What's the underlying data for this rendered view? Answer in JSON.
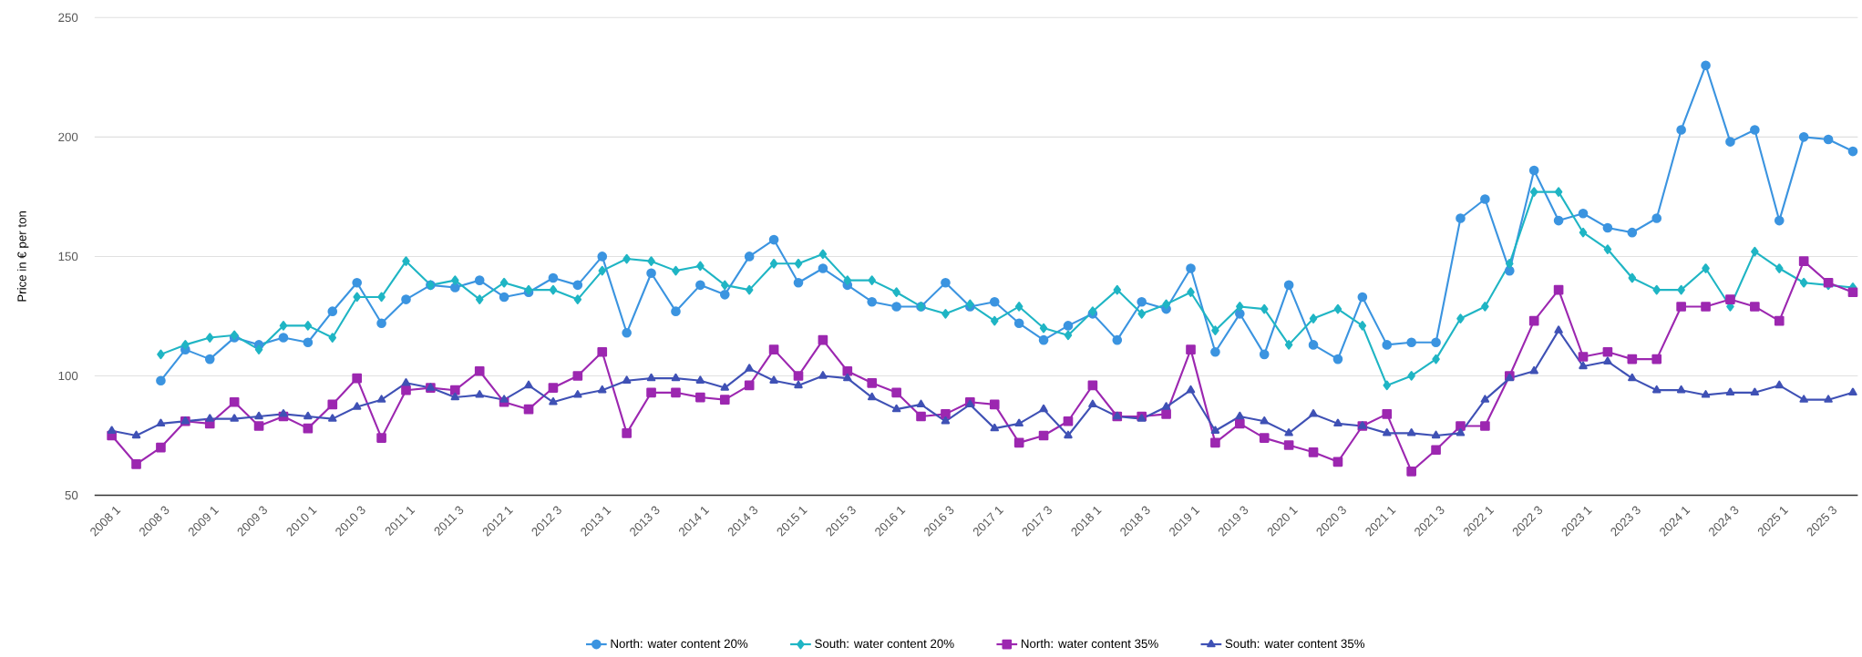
{
  "chart_data": {
    "type": "line",
    "ylabel": "Price in € per ton",
    "categories": [
      "2008 1",
      null,
      "2008 3",
      null,
      "2009 1",
      null,
      "2009 3",
      null,
      "2010 1",
      null,
      "2010 3",
      null,
      "2011 1",
      null,
      "2011 3",
      null,
      "2012 1",
      null,
      "2012 3",
      null,
      "2013 1",
      null,
      "2013 3",
      null,
      "2014 1",
      null,
      "2014 3",
      null,
      "2015 1",
      null,
      "2015 3",
      null,
      "2016 1",
      null,
      "2016 3",
      null,
      "2017 1",
      null,
      "2017 3",
      null,
      "2018 1",
      null,
      "2018 3",
      null,
      "2019 1",
      null,
      "2019 3",
      null,
      "2020 1",
      null,
      "2020 3",
      null,
      "2021 1",
      null,
      "2021 3",
      null,
      "2022 1",
      null,
      "2022 3",
      null,
      "2023 1",
      null,
      "2023 3",
      null,
      "2024 1",
      null,
      "2024 3",
      null,
      "2025 1",
      null,
      "2025 3",
      null
    ],
    "series": [
      {
        "name": "North: water content 20%",
        "color": "#3b94e0",
        "marker": "circle",
        "values": [
          null,
          null,
          98,
          111,
          107,
          116,
          113,
          116,
          114,
          127,
          139,
          122,
          132,
          138,
          137,
          140,
          133,
          135,
          141,
          138,
          150,
          118,
          143,
          127,
          138,
          134,
          150,
          157,
          139,
          145,
          138,
          131,
          129,
          129,
          139,
          129,
          131,
          122,
          115,
          121,
          126,
          115,
          131,
          128,
          145,
          110,
          126,
          109,
          138,
          113,
          107,
          133,
          113,
          114,
          114,
          166,
          174,
          144,
          186,
          165,
          168,
          162,
          160,
          166,
          203,
          230,
          198,
          203,
          165,
          200,
          199,
          194
        ]
      },
      {
        "name": "South: water content 20%",
        "color": "#1fb5c4",
        "marker": "diamond",
        "values": [
          null,
          null,
          109,
          113,
          116,
          117,
          111,
          121,
          121,
          116,
          133,
          133,
          148,
          138,
          140,
          132,
          139,
          136,
          136,
          132,
          144,
          149,
          148,
          144,
          146,
          138,
          136,
          147,
          147,
          151,
          140,
          140,
          135,
          129,
          126,
          130,
          123,
          129,
          120,
          117,
          127,
          136,
          126,
          130,
          135,
          119,
          129,
          128,
          113,
          124,
          128,
          121,
          96,
          100,
          107,
          124,
          129,
          147,
          177,
          177,
          160,
          153,
          141,
          136,
          136,
          145,
          129,
          152,
          145,
          139,
          138,
          137
        ]
      },
      {
        "name": "North: water content 35%",
        "color": "#9c27b0",
        "marker": "square",
        "values": [
          75,
          63,
          70,
          81,
          80,
          89,
          79,
          83,
          78,
          88,
          99,
          74,
          94,
          95,
          94,
          102,
          89,
          86,
          95,
          100,
          110,
          76,
          93,
          93,
          91,
          90,
          96,
          111,
          100,
          115,
          102,
          97,
          93,
          83,
          84,
          89,
          88,
          72,
          75,
          81,
          96,
          83,
          83,
          84,
          111,
          72,
          80,
          74,
          71,
          68,
          64,
          79,
          84,
          60,
          69,
          79,
          79,
          100,
          123,
          136,
          108,
          110,
          107,
          107,
          129,
          129,
          132,
          129,
          123,
          148,
          139,
          135
        ]
      },
      {
        "name": "South: water content 35%",
        "color": "#3f51b5",
        "marker": "triangle",
        "values": [
          77,
          75,
          80,
          81,
          82,
          82,
          83,
          84,
          83,
          82,
          87,
          90,
          97,
          95,
          91,
          92,
          90,
          96,
          89,
          92,
          94,
          98,
          99,
          99,
          98,
          95,
          103,
          98,
          96,
          100,
          99,
          91,
          86,
          88,
          81,
          88,
          78,
          80,
          86,
          75,
          88,
          83,
          82,
          87,
          94,
          77,
          83,
          81,
          76,
          84,
          80,
          79,
          76,
          76,
          75,
          76,
          90,
          99,
          102,
          119,
          104,
          106,
          99,
          94,
          94,
          92,
          93,
          93,
          96,
          90,
          90,
          93
        ]
      }
    ],
    "ylim": [
      50,
      250
    ],
    "yticks": [
      50,
      100,
      150,
      200,
      250
    ],
    "grid": "y",
    "legend": "bottom"
  }
}
